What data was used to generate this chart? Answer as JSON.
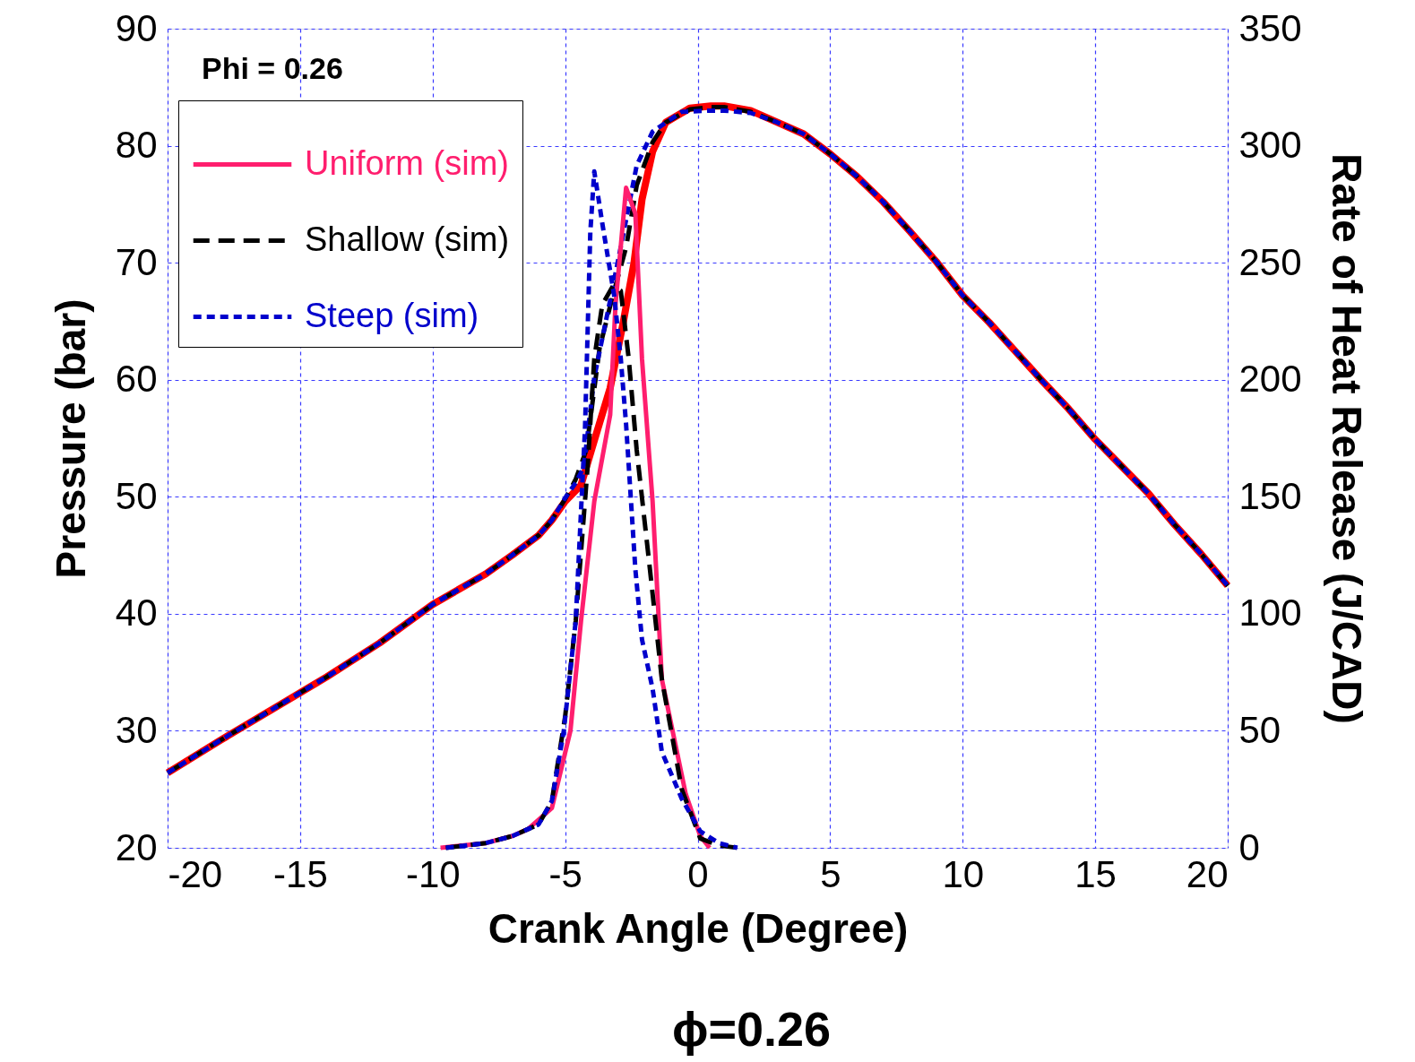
{
  "chart_data": {
    "type": "line",
    "xlabel": "Crank Angle (Degree)",
    "ylabel": "Pressure (bar)",
    "y2label": "Rate of Heat Release (J/CAD)",
    "annotations": [
      "Phi = 0.26",
      "ϕ=0.26"
    ],
    "xlim": [
      -20,
      20
    ],
    "xticks": [
      -20,
      -15,
      -10,
      -5,
      0,
      5,
      10,
      15,
      20
    ],
    "ylim": [
      20,
      90
    ],
    "yticks": [
      20,
      30,
      40,
      50,
      60,
      70,
      80,
      90
    ],
    "y2lim": [
      0,
      350
    ],
    "y2ticks": [
      0,
      50,
      100,
      150,
      200,
      250,
      300,
      350
    ],
    "grid": true,
    "legend": "top left",
    "series": [
      {
        "color": "#ff0000",
        "line_style": "solid",
        "axis": "y",
        "x": [
          -20,
          -18,
          -16,
          -14,
          -12,
          -10,
          -8,
          -7,
          -6,
          -5.5,
          -5,
          -4.4,
          -3.9,
          -3.3,
          -2.8,
          -2.4,
          -2.1,
          -1.7,
          -1.2,
          -0.3,
          0.5,
          1,
          2,
          3,
          4,
          5,
          6,
          7,
          8,
          9,
          10,
          11,
          12,
          13,
          14,
          15,
          16,
          17,
          18,
          19,
          20
        ],
        "values": [
          26.4,
          29.2,
          31.9,
          34.6,
          37.5,
          40.8,
          43.4,
          45.0,
          46.7,
          48.0,
          49.6,
          51.0,
          54.8,
          59.3,
          65.0,
          70.0,
          75.4,
          79.5,
          82.0,
          83.2,
          83.4,
          83.4,
          83.0,
          82.0,
          81.0,
          79.3,
          77.4,
          75.2,
          72.7,
          70.1,
          67.2,
          64.9,
          62.4,
          59.9,
          57.5,
          54.9,
          52.6,
          50.3,
          47.6,
          45.1,
          42.4
        ]
      },
      {
        "color": "#000000",
        "line_style": "dashed",
        "axis": "y",
        "x": [
          -20,
          -18,
          -16,
          -14,
          -12,
          -10,
          -8,
          -7,
          -6,
          -5.5,
          -5,
          -4.6,
          -4.2,
          -3.7,
          -3.2,
          -2.7,
          -2.3,
          -1.7,
          -1.2,
          -0.3,
          0.5,
          1,
          2,
          3,
          4,
          5,
          6,
          7,
          8,
          9,
          10,
          11,
          12,
          13,
          14,
          15,
          16,
          17,
          18,
          19,
          20
        ],
        "values": [
          26.4,
          29.2,
          31.9,
          34.6,
          37.5,
          40.8,
          43.4,
          45.0,
          46.7,
          48.0,
          49.8,
          51.5,
          54.0,
          62.7,
          67.2,
          71.3,
          76.6,
          80.3,
          82.0,
          83.1,
          83.3,
          83.3,
          82.9,
          82.0,
          81.0,
          79.3,
          77.4,
          75.2,
          72.7,
          70.1,
          67.2,
          64.9,
          62.4,
          59.9,
          57.5,
          54.9,
          52.6,
          50.3,
          47.6,
          45.1,
          42.4
        ]
      },
      {
        "color": "#0000cc",
        "line_style": "dotted",
        "axis": "y",
        "x": [
          -20,
          -18,
          -16,
          -14,
          -12,
          -10,
          -8,
          -7,
          -6,
          -5.5,
          -5,
          -4.6,
          -4.3,
          -3.9,
          -3.3,
          -2.8,
          -2.3,
          -1.7,
          -0.6,
          0.5,
          1,
          2,
          3,
          4,
          5,
          6,
          7,
          8,
          9,
          10,
          11,
          12,
          13,
          14,
          15,
          16,
          17,
          18,
          19,
          20
        ],
        "values": [
          26.4,
          29.2,
          31.9,
          34.6,
          37.5,
          40.8,
          43.4,
          45.0,
          46.7,
          48.0,
          49.9,
          51.2,
          52.5,
          60.2,
          66.8,
          72.5,
          78.3,
          81.2,
          82.9,
          83.0,
          83.0,
          82.8,
          82.0,
          81.0,
          79.3,
          77.4,
          75.2,
          72.7,
          70.1,
          67.2,
          64.9,
          62.4,
          59.9,
          57.5,
          54.9,
          52.6,
          50.3,
          47.6,
          45.1,
          42.4
        ]
      },
      {
        "name": "Uniform (sim)",
        "color": "#ff1e6e",
        "line_style": "solid",
        "axis": "y2",
        "x": [
          -9.7,
          -8,
          -7,
          -6.4,
          -5.5,
          -4.8,
          -4.4,
          -3.9,
          -3.3,
          -3.1,
          -2.7,
          -2.35,
          -2.1,
          -1.7,
          -1.35,
          -0.45,
          0.1,
          0.45
        ],
        "values": [
          0,
          2,
          5,
          8,
          17,
          50,
          97,
          148,
          185,
          232,
          282,
          271,
          209,
          148,
          72,
          23,
          5,
          0
        ]
      },
      {
        "name": "Shallow (sim)",
        "color": "#000000",
        "line_style": "dashed",
        "axis": "y2",
        "x": [
          -9.5,
          -8,
          -7,
          -6,
          -5.5,
          -5,
          -4.6,
          -4.15,
          -3.9,
          -3.6,
          -3.2,
          -2.9,
          -2.6,
          -2.3,
          -1.8,
          -1.35,
          -0.6,
          0.1,
          0.8,
          1.5
        ],
        "values": [
          0,
          2,
          5,
          10,
          20,
          56,
          97,
          163,
          209,
          232,
          240,
          238,
          209,
          170,
          119,
          72,
          25,
          4,
          1,
          0
        ]
      },
      {
        "name": "Steep (sim)",
        "color": "#0000cc",
        "line_style": "dotted",
        "axis": "y2",
        "x": [
          -9.5,
          -8,
          -7,
          -6,
          -5.5,
          -5.05,
          -4.6,
          -4.25,
          -4.05,
          -3.9,
          -3.6,
          -3.15,
          -2.9,
          -2.7,
          -2.35,
          -2.1,
          -1.7,
          -1.35,
          -0.6,
          0.1,
          0.8,
          1.5
        ],
        "values": [
          0,
          2,
          5,
          10,
          20,
          50,
          97,
          179,
          263,
          289,
          267,
          236,
          209,
          181,
          119,
          89,
          68,
          41,
          21,
          7,
          2,
          0
        ]
      }
    ]
  }
}
